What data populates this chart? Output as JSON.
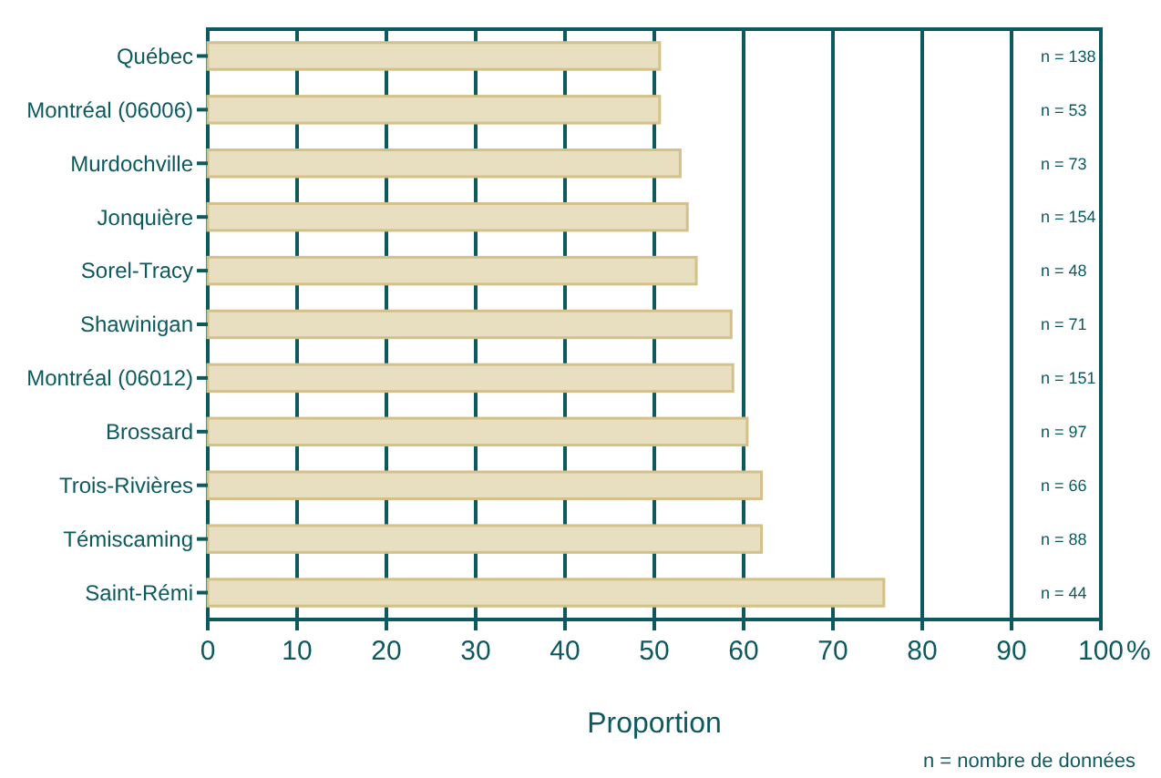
{
  "chart_data": {
    "type": "bar",
    "orientation": "horizontal",
    "xlabel": "Proportion",
    "categories": [
      "Québec",
      "Montréal (06006)",
      "Murdochville",
      "Jonquière",
      "Sorel-Tracy",
      "Shawinigan",
      "Montréal (06012)",
      "Brossard",
      "Trois-Rivières",
      "Témiscaming",
      "Saint-Rémi"
    ],
    "values": [
      50.6,
      50.6,
      52.9,
      53.7,
      54.7,
      58.6,
      58.8,
      60.4,
      62.0,
      62.0,
      75.7
    ],
    "color": "#e8dfc0",
    "xlim": [
      0,
      100
    ],
    "xticks": [
      0,
      10,
      20,
      30,
      40,
      50,
      60,
      70,
      80,
      90,
      100
    ],
    "grid": "x",
    "annotations": [
      "n = 138",
      "n = 53",
      "n = 73",
      "n = 154",
      "n = 48",
      "n = 71",
      "n = 151",
      "n = 97",
      "n = 66",
      "n = 88",
      "n = 44",
      "%",
      "n = nombre de données"
    ]
  }
}
